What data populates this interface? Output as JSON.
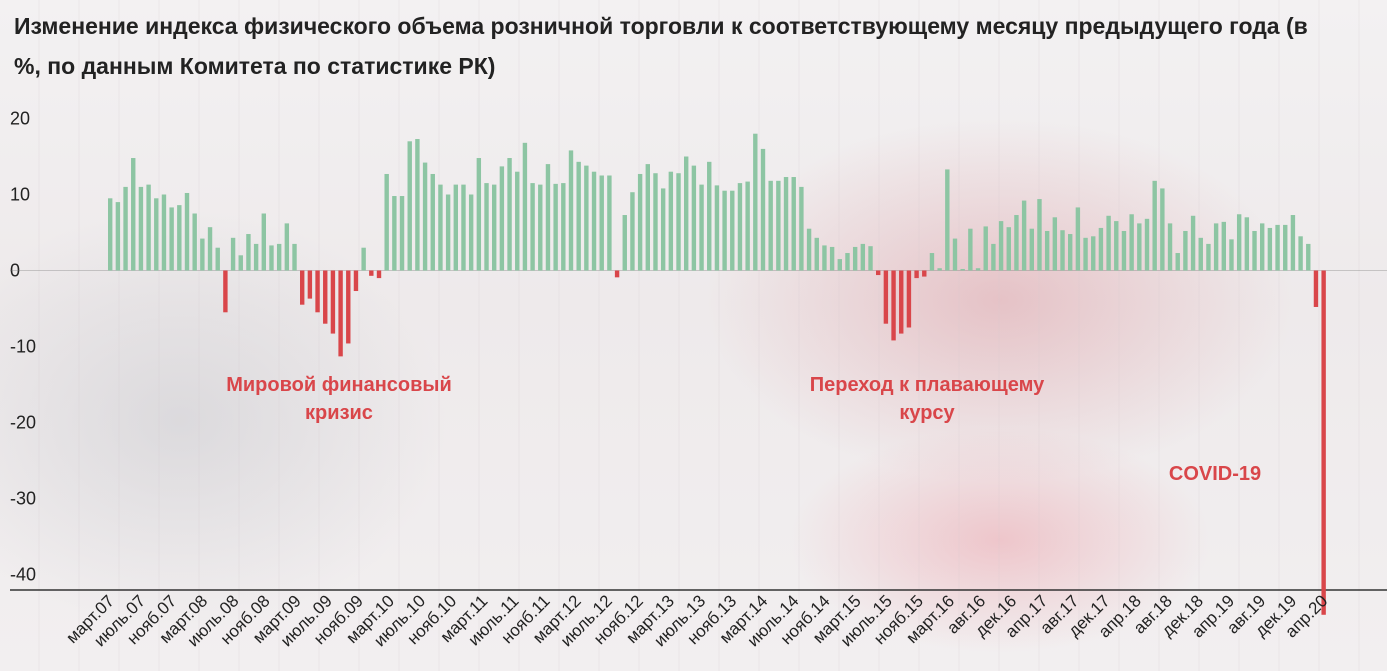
{
  "title": "Изменение индекса физического объема розничной торговли к соответствующему месяцу предыдущего года (в %, по данным Комитета по статистике РК)",
  "colors": {
    "positive": "#8dc5a3",
    "negative": "#d9464a",
    "annotation": "#d9464a"
  },
  "chart_data": {
    "type": "bar",
    "title": "Изменение индекса физического объема розничной торговли к соответствующему месяцу предыдущего года (в %, по данным Комитета по статистике РК)",
    "xlabel": "",
    "ylabel": "",
    "ylim": [
      -46,
      22
    ],
    "yticks": [
      20,
      10,
      0,
      -10,
      -20,
      -30,
      -40
    ],
    "grid": false,
    "legend": "none",
    "first_period": "март.07",
    "last_period": "апр.20",
    "values": [
      9.5,
      9,
      11,
      14.8,
      11,
      11.3,
      9.5,
      10,
      8.3,
      8.6,
      10.2,
      7.5,
      4.2,
      5.7,
      3,
      -5.5,
      4.3,
      2,
      4.8,
      3.5,
      7.5,
      3.3,
      3.5,
      6.2,
      3.5,
      -4.5,
      -3.7,
      -5.5,
      -7,
      -8.3,
      -11.3,
      -9.6,
      -2.7,
      3,
      -0.7,
      -1,
      12.7,
      9.8,
      9.8,
      17,
      17.3,
      14.2,
      12.7,
      11.3,
      10,
      11.3,
      11.3,
      10,
      14.8,
      11.5,
      11.3,
      13.7,
      14.8,
      13,
      16.8,
      11.5,
      11.3,
      14,
      11.4,
      11.5,
      15.8,
      14.3,
      13.8,
      13,
      12.5,
      12.5,
      -0.9,
      7.3,
      10.3,
      12.7,
      14,
      12.8,
      10.8,
      13,
      12.8,
      15,
      13.8,
      11.3,
      14.3,
      11.2,
      10.5,
      10.5,
      11.5,
      11.7,
      18,
      16,
      11.8,
      11.8,
      12.3,
      12.3,
      11,
      5.5,
      4.3,
      3.3,
      3.1,
      1.5,
      2.3,
      3.1,
      3.5,
      3.2,
      -0.6,
      -7,
      -9.2,
      -8.3,
      -7.5,
      -1,
      -0.8,
      2.3,
      0.3,
      13.3,
      4.2,
      0.2,
      5.5,
      0.3,
      5.8,
      3.5,
      6.5,
      5.7,
      7.3,
      9.2,
      5.5,
      9.4,
      5.2,
      7,
      5.3,
      4.8,
      8.3,
      4.3,
      4.5,
      5.6,
      7.2,
      6.5,
      5.2,
      7.4,
      6.2,
      6.8,
      11.8,
      10.8,
      6.2,
      2.3,
      5.2,
      7.2,
      4.3,
      3.5,
      6.2,
      6.4,
      4.1,
      7.4,
      7,
      5.2,
      6.2,
      5.6,
      6,
      6,
      7.3,
      4.5,
      3.5,
      -4.8,
      -45.3
    ],
    "x_tick_labels": [
      "март.07",
      "июль.07",
      "нояб.07",
      "март.08",
      "июль.08",
      "нояб.08",
      "март.09",
      "июль.09",
      "нояб.09",
      "март.10",
      "июль.10",
      "нояб.10",
      "март.11",
      "июль.11",
      "нояб.11",
      "март.12",
      "июль.12",
      "нояб.12",
      "март.13",
      "июль.13",
      "нояб.13",
      "март.14",
      "июль.14",
      "нояб.14",
      "март.15",
      "июль.15",
      "нояб.15",
      "март.16",
      "авг.16",
      "дек.16",
      "апр.17",
      "авг.17",
      "дек.17",
      "апр.18",
      "авг.18",
      "дек.18",
      "апр.19",
      "авг.19",
      "дек.19",
      "апр.20"
    ],
    "annotations": [
      {
        "name": "crisis",
        "lines": [
          "Мировой финансовый",
          "кризис"
        ]
      },
      {
        "name": "float",
        "lines": [
          "Переход к плавающему",
          "курсу"
        ]
      },
      {
        "name": "covid",
        "lines": [
          "COVID-19"
        ]
      }
    ]
  }
}
